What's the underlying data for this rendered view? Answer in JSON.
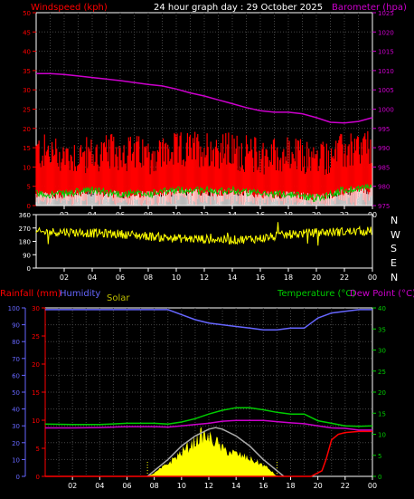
{
  "header": {
    "windspeed_label": "Windspeed (kph)",
    "title": "24 hour graph day : 29 October 2025",
    "barometer_label": "Barometer (hpa)"
  },
  "labels": {
    "rainfall": "Rainfall (mm)",
    "humidity": "Humidity",
    "solar": "Solar",
    "temperature": "Temperature (°C)",
    "dewpoint": "Dew Point (°C)"
  },
  "compass": [
    "N",
    "W",
    "S",
    "E",
    "N"
  ],
  "colors": {
    "wind": "#ff0000",
    "gust_lull": "#00cc00",
    "wind_low": "#ffffff",
    "barometer": "#cc00cc",
    "direction": "#ffff00",
    "rain_axis": "#ff0000",
    "humidity": "#6666ff",
    "solar": "#ffff00",
    "solar_theory": "#aaaaaa",
    "temperature": "#00cc00",
    "dewpoint": "#cc00cc",
    "axis": "#ffffff",
    "grid": "#444444"
  },
  "chart_data": [
    {
      "type": "line",
      "name": "wind-barometer",
      "title": "24 hour graph day : 29 October 2025",
      "xlabel": "",
      "xticks": [
        "02",
        "04",
        "06",
        "08",
        "10",
        "12",
        "14",
        "16",
        "18",
        "20",
        "22",
        "00"
      ],
      "ylabel": "Windspeed (kph)",
      "ylim": [
        0,
        50
      ],
      "yticks": [
        0,
        5,
        10,
        15,
        20,
        25,
        30,
        35,
        40,
        45,
        50
      ],
      "y2label": "Barometer (hpa)",
      "y2lim": [
        975,
        1025
      ],
      "y2ticks": [
        975,
        980,
        985,
        990,
        995,
        1000,
        1005,
        1010,
        1015,
        1020,
        1025
      ],
      "grid": true,
      "series": [
        {
          "x": [
            0,
            2,
            4,
            6,
            8,
            10,
            12,
            14,
            16,
            18,
            20,
            22,
            24
          ],
          "values": [
            13,
            12,
            12,
            13,
            12,
            13,
            14,
            13,
            12,
            12,
            11,
            13,
            14
          ]
        },
        {
          "x": [
            0,
            2,
            4,
            6,
            8,
            10,
            12,
            14,
            16,
            18,
            20,
            22,
            24
          ],
          "values": [
            3,
            3,
            4,
            3,
            3,
            4,
            4,
            4,
            3,
            3,
            2,
            4,
            5
          ]
        },
        {
          "axis": "right",
          "x": [
            0,
            1,
            2,
            3,
            4,
            5,
            6,
            7,
            8,
            9,
            10,
            11,
            12,
            13,
            14,
            15,
            16,
            17,
            18,
            19,
            20,
            21,
            22,
            23,
            24
          ],
          "values": [
            1009.2,
            1009.2,
            1009.0,
            1008.6,
            1008.2,
            1007.8,
            1007.4,
            1006.9,
            1006.4,
            1006.0,
            1005.2,
            1004.2,
            1003.4,
            1002.4,
            1001.4,
            1000.4,
            999.6,
            999.2,
            999.2,
            998.8,
            997.8,
            996.6,
            996.4,
            996.8,
            997.8
          ]
        }
      ]
    },
    {
      "type": "scatter",
      "name": "wind-direction",
      "ylim": [
        0,
        360
      ],
      "yticks": [
        0,
        90,
        180,
        270,
        360
      ],
      "y2ticks": [
        "N",
        "W",
        "S",
        "E",
        "N"
      ],
      "xticks": [
        "02",
        "04",
        "06",
        "08",
        "10",
        "12",
        "14",
        "16",
        "18",
        "20",
        "22",
        "00"
      ],
      "series": [
        {
          "x": [
            0,
            2,
            4,
            6,
            8,
            10,
            12,
            14,
            16,
            18,
            20,
            22,
            24
          ],
          "values": [
            240,
            245,
            235,
            230,
            215,
            200,
            195,
            190,
            200,
            225,
            240,
            245,
            250
          ]
        }
      ]
    },
    {
      "type": "line",
      "name": "rain-humidity-solar-temp",
      "ylabel": "Humidity",
      "ylim": [
        0,
        100
      ],
      "yticks": [
        0,
        10,
        20,
        30,
        40,
        50,
        60,
        70,
        80,
        90,
        100
      ],
      "rain_ylabel": "Rainfall (mm)",
      "rain_ylim": [
        0,
        30
      ],
      "rain_yticks": [
        0,
        5,
        10,
        15,
        20,
        25,
        30
      ],
      "y2label": "Temperature (°C)",
      "y2lim": [
        0,
        40
      ],
      "y2ticks": [
        0,
        5,
        10,
        15,
        20,
        25,
        30,
        35,
        40
      ],
      "xticks": [
        "02",
        "04",
        "06",
        "08",
        "10",
        "12",
        "14",
        "16",
        "18",
        "20",
        "22",
        "00"
      ],
      "grid": true,
      "series": [
        {
          "x": [
            0,
            2,
            4,
            6,
            8,
            9,
            10,
            11,
            12,
            13,
            14,
            15,
            16,
            17,
            18,
            19,
            20,
            21,
            22,
            23,
            24
          ],
          "values": [
            99,
            99,
            99,
            99,
            99,
            99,
            96,
            93,
            91,
            90,
            89,
            88,
            87,
            87,
            88,
            88,
            94,
            97,
            98,
            99,
            99
          ]
        },
        {
          "axis": "rain",
          "x": [
            0,
            2,
            4,
            6,
            8,
            10,
            12,
            14,
            16,
            18,
            19.5,
            20.3,
            20.6,
            21,
            21.5,
            22,
            23,
            24
          ],
          "values": [
            0,
            0,
            0,
            0,
            0,
            0,
            0,
            0,
            0,
            0,
            0,
            1,
            3,
            6.5,
            7.5,
            7.8,
            8,
            8
          ]
        },
        {
          "x": [
            7.5,
            8,
            9,
            10,
            11,
            11.5,
            12,
            12.5,
            13,
            14,
            15,
            16,
            16.5,
            17
          ],
          "values": [
            0,
            2,
            8,
            15,
            22,
            26,
            24,
            22,
            17,
            14,
            11,
            7,
            4,
            0
          ]
        },
        {
          "x": [
            7.5,
            9,
            10,
            11,
            12,
            12.5,
            13,
            14,
            15,
            16,
            17.5
          ],
          "values": [
            0,
            10,
            18,
            24,
            28,
            29,
            28,
            24,
            18,
            10,
            0
          ]
        },
        {
          "axis": "right",
          "x": [
            0,
            2,
            4,
            6,
            8,
            9,
            10,
            11,
            12,
            13,
            14,
            15,
            16,
            17,
            18,
            19,
            20,
            21,
            22,
            23,
            24
          ],
          "values": [
            12.4,
            12.3,
            12.3,
            12.6,
            12.6,
            12.4,
            12.9,
            13.7,
            14.8,
            15.7,
            16.3,
            16.3,
            15.8,
            15.2,
            14.8,
            14.8,
            13.2,
            12.6,
            12.0,
            11.9,
            12.0
          ]
        },
        {
          "axis": "right",
          "x": [
            0,
            2,
            4,
            6,
            8,
            9,
            10,
            11,
            12,
            13,
            14,
            15,
            16,
            17,
            18,
            19,
            20,
            21,
            22,
            23,
            24
          ],
          "values": [
            11.5,
            11.5,
            11.6,
            11.8,
            11.8,
            11.7,
            12.0,
            12.3,
            12.6,
            13.1,
            13.3,
            13.3,
            13.3,
            13.0,
            12.7,
            12.5,
            12.0,
            11.5,
            11.4,
            11.0,
            11.0
          ]
        }
      ]
    }
  ]
}
